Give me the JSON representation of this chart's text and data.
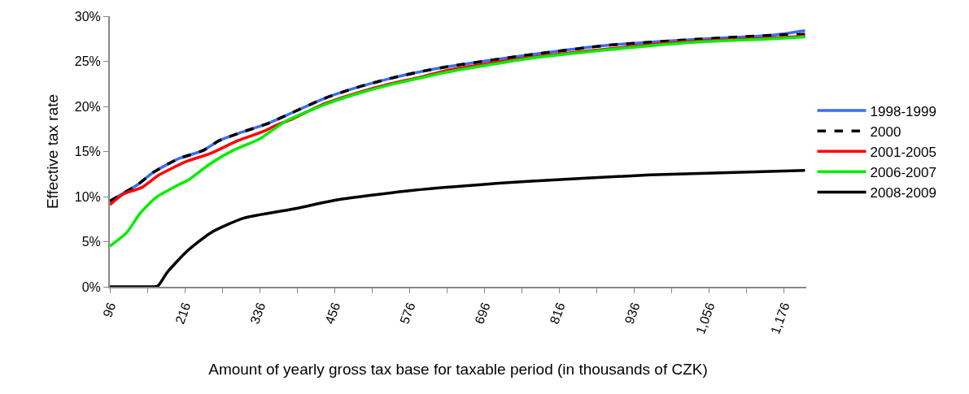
{
  "chart_data": {
    "type": "line",
    "xlabel": "Amount of yearly gross tax base for taxable period (in thousands of CZK)",
    "ylabel": "Effective tax rate",
    "xlim": [
      96,
      1212
    ],
    "xticks": [
      96,
      {
        "value": 156,
        "label": null
      },
      216,
      {
        "value": 276,
        "label": null
      },
      336,
      {
        "value": 396,
        "label": null
      },
      456,
      {
        "value": 516,
        "label": null
      },
      576,
      {
        "value": 636,
        "label": null
      },
      696,
      {
        "value": 756,
        "label": null
      },
      816,
      {
        "value": 876,
        "label": null
      },
      936,
      {
        "value": 996,
        "label": null
      },
      {
        "value": 1056,
        "label": "1,056"
      },
      {
        "value": 1116,
        "label": null
      },
      {
        "value": 1176,
        "label": "1,176"
      }
    ],
    "ylim": [
      0,
      0.3
    ],
    "yticks": [
      {
        "value": 0,
        "label": "0%"
      },
      {
        "value": 0.05,
        "label": "5%"
      },
      {
        "value": 0.1,
        "label": "10%"
      },
      {
        "value": 0.15,
        "label": "15%"
      },
      {
        "value": 0.2,
        "label": "20%"
      },
      {
        "value": 0.25,
        "label": "25%"
      },
      {
        "value": 0.3,
        "label": "30%"
      }
    ],
    "legend": "right",
    "marker": "none",
    "series": [
      {
        "name": "1998-1999",
        "color": "#3d6cf0",
        "line_style": "solid",
        "x": [
          96,
          140,
          166,
          206,
          245,
          271,
          310,
          349,
          388,
          440,
          492,
          545,
          597,
          636,
          766,
          897,
          1027,
          1158,
          1210
        ],
        "values": [
          0.095,
          0.113,
          0.127,
          0.142,
          0.151,
          0.162,
          0.172,
          0.181,
          0.193,
          0.209,
          0.221,
          0.231,
          0.239,
          0.244,
          0.257,
          0.268,
          0.274,
          0.279,
          0.284
        ]
      },
      {
        "name": "2000",
        "color": "#000000",
        "line_style": "dashed",
        "x": [
          96,
          140,
          166,
          206,
          245,
          271,
          310,
          349,
          388,
          440,
          492,
          545,
          597,
          636,
          766,
          897,
          1027,
          1158,
          1210
        ],
        "values": [
          0.095,
          0.113,
          0.127,
          0.142,
          0.151,
          0.162,
          0.172,
          0.181,
          0.193,
          0.209,
          0.221,
          0.231,
          0.239,
          0.244,
          0.257,
          0.268,
          0.274,
          0.279,
          0.28
        ]
      },
      {
        "name": "2001-2005",
        "color": "#ff0000",
        "line_style": "solid",
        "x": [
          96,
          118,
          147,
          175,
          219,
          258,
          301,
          345,
          362,
          388,
          440,
          492,
          545,
          597,
          636,
          766,
          897,
          1027,
          1158,
          1210
        ],
        "values": [
          0.091,
          0.103,
          0.11,
          0.124,
          0.139,
          0.148,
          0.162,
          0.173,
          0.179,
          0.186,
          0.203,
          0.215,
          0.225,
          0.233,
          0.24,
          0.254,
          0.264,
          0.272,
          0.276,
          0.278
        ]
      },
      {
        "name": "2006-2007",
        "color": "#00ee00",
        "line_style": "solid",
        "x": [
          96,
          123,
          144,
          170,
          206,
          223,
          258,
          293,
          336,
          379,
          440,
          492,
          545,
          597,
          636,
          766,
          897,
          1027,
          1158,
          1210
        ],
        "values": [
          0.045,
          0.06,
          0.081,
          0.099,
          0.113,
          0.119,
          0.137,
          0.151,
          0.164,
          0.184,
          0.202,
          0.214,
          0.224,
          0.232,
          0.238,
          0.253,
          0.263,
          0.271,
          0.275,
          0.277
        ]
      },
      {
        "name": "2008-2009",
        "color": "#000000",
        "line_style": "solid",
        "x": [
          96,
          130,
          162,
          173,
          188,
          219,
          258,
          310,
          388,
          466,
          597,
          766,
          962,
          1210
        ],
        "values": [
          0,
          0,
          0,
          0.001,
          0.016,
          0.039,
          0.06,
          0.076,
          0.086,
          0.097,
          0.108,
          0.117,
          0.124,
          0.129
        ]
      }
    ]
  }
}
